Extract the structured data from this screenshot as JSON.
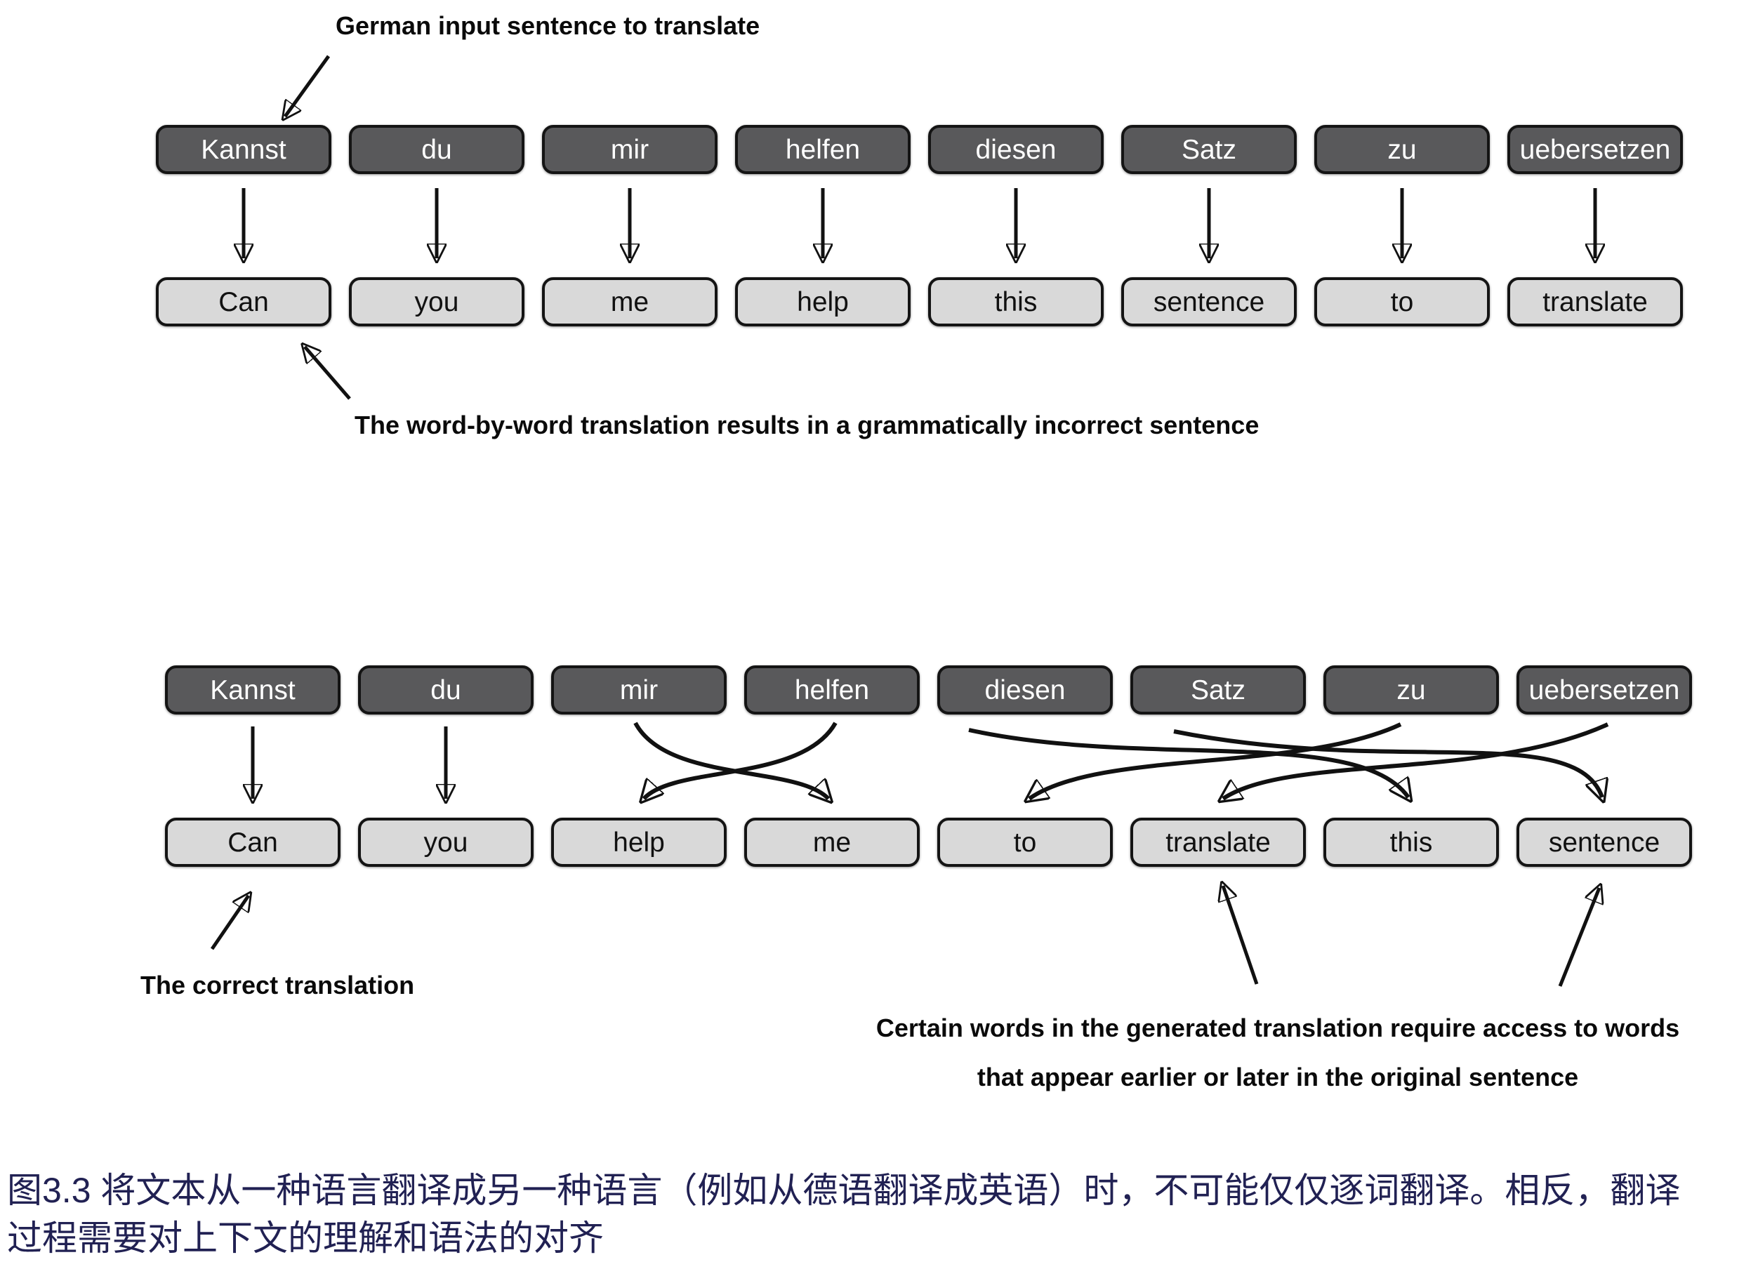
{
  "figure": {
    "top_annotation": "German input sentence to translate",
    "wordbyword_annotation": "The word-by-word translation results in a grammatically incorrect sentence",
    "correct_annotation": "The correct translation",
    "context_annotation_line1": "Certain words in the generated translation require access to words",
    "context_annotation_line2": "that appear earlier or later in the original sentence",
    "caption_line1": "图3.3 将文本从一种语言翻译成另一种语言（例如从德语翻译成英语）时，不可能仅仅逐词翻译。相反，翻译",
    "caption_line2": "过程需要对上下文的理解和语法的对齐"
  },
  "german_words": [
    "Kannst",
    "du",
    "mir",
    "helfen",
    "diesen",
    "Satz",
    "zu",
    "uebersetzen"
  ],
  "word_by_word_translation": [
    "Can",
    "you",
    "me",
    "help",
    "this",
    "sentence",
    "to",
    "translate"
  ],
  "correct_translation": [
    "Can",
    "you",
    "help",
    "me",
    "to",
    "translate",
    "this",
    "sentence"
  ],
  "alignment_top": [
    [
      0,
      0
    ],
    [
      1,
      1
    ],
    [
      2,
      2
    ],
    [
      3,
      3
    ],
    [
      4,
      4
    ],
    [
      5,
      5
    ],
    [
      6,
      6
    ],
    [
      7,
      7
    ]
  ],
  "alignment_bottom": [
    [
      0,
      0
    ],
    [
      1,
      1
    ],
    [
      2,
      3
    ],
    [
      3,
      2
    ],
    [
      4,
      6
    ],
    [
      5,
      7
    ],
    [
      6,
      4
    ],
    [
      7,
      5
    ]
  ],
  "colors": {
    "german_box_fill": "#59595b",
    "german_box_text": "#ffffff",
    "english_box_fill": "#d9d9d9",
    "english_box_text": "#111111",
    "box_border": "#141414",
    "arrow": "#111111",
    "annotation_text": "#0a0a0a",
    "caption_text": "#212153"
  }
}
